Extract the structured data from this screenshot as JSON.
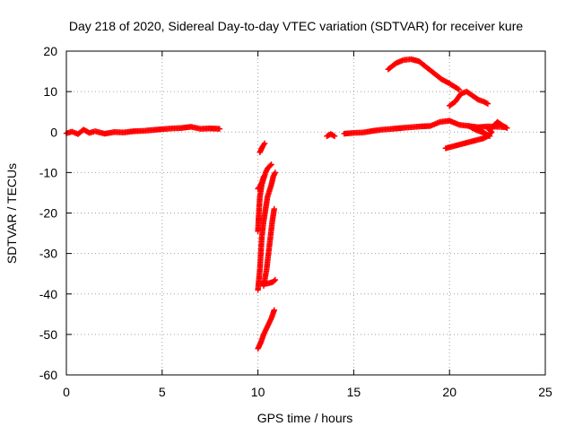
{
  "chart_data": {
    "type": "scatter",
    "title": "Day 218 of 2020, Sidereal Day-to-day VTEC variation (SDTVAR) for receiver kure",
    "xlabel": "GPS time / hours",
    "ylabel": "SDTVAR / TECUs",
    "xlim": [
      0,
      25
    ],
    "ylim": [
      -60,
      20
    ],
    "xticks": [
      0,
      5,
      10,
      15,
      20,
      25
    ],
    "yticks": [
      -60,
      -50,
      -40,
      -30,
      -20,
      -10,
      0,
      10,
      20
    ],
    "x_tick_labels": [
      "0",
      "5",
      "10",
      "15",
      "20",
      "25"
    ],
    "y_tick_labels": [
      "-60",
      "-50",
      "-40",
      "-30",
      "-20",
      "-10",
      "0",
      "10",
      "20"
    ],
    "grid": true,
    "legend": "none",
    "marker": "plus",
    "color": "#ff0000",
    "series": [
      {
        "arcs": [
          [
            [
              0.0,
              -0.3
            ],
            [
              0.3,
              0.1
            ],
            [
              0.6,
              -0.5
            ],
            [
              0.9,
              0.6
            ],
            [
              1.2,
              -0.2
            ],
            [
              1.5,
              0.2
            ],
            [
              2.0,
              -0.4
            ],
            [
              2.5,
              0.0
            ],
            [
              3.0,
              -0.1
            ],
            [
              3.5,
              0.2
            ],
            [
              4.0,
              0.3
            ],
            [
              4.5,
              0.5
            ],
            [
              5.0,
              0.7
            ],
            [
              5.5,
              0.9
            ],
            [
              6.0,
              1.0
            ],
            [
              6.5,
              1.3
            ],
            [
              7.0,
              0.8
            ],
            [
              7.5,
              0.9
            ],
            [
              8.0,
              0.8
            ]
          ],
          [
            [
              10.1,
              -5.0
            ],
            [
              10.25,
              -3.5
            ],
            [
              10.35,
              -2.8
            ]
          ],
          [
            [
              10.0,
              -24.5
            ],
            [
              10.05,
              -20.0
            ],
            [
              10.1,
              -16.0
            ],
            [
              10.2,
              -13.0
            ],
            [
              10.3,
              -11.5
            ],
            [
              10.4,
              -10.0
            ],
            [
              10.5,
              -9.0
            ],
            [
              10.6,
              -8.5
            ],
            [
              10.7,
              -8.0
            ]
          ],
          [
            [
              10.0,
              -14.0
            ],
            [
              10.1,
              -13.5
            ],
            [
              10.2,
              -12.5
            ],
            [
              10.3,
              -11.0
            ]
          ],
          [
            [
              10.0,
              -39.0
            ],
            [
              10.1,
              -34.0
            ],
            [
              10.15,
              -30.0
            ],
            [
              10.2,
              -26.0
            ],
            [
              10.3,
              -22.0
            ],
            [
              10.4,
              -19.0
            ],
            [
              10.5,
              -16.0
            ],
            [
              10.7,
              -13.0
            ],
            [
              10.8,
              -11.0
            ],
            [
              10.9,
              -10.0
            ]
          ],
          [
            [
              10.2,
              -37.5
            ],
            [
              10.4,
              -37.5
            ],
            [
              10.6,
              -37.3
            ],
            [
              10.8,
              -37.0
            ],
            [
              10.9,
              -36.5
            ]
          ],
          [
            [
              10.3,
              -38.0
            ],
            [
              10.45,
              -34.0
            ],
            [
              10.55,
              -30.0
            ],
            [
              10.65,
              -26.0
            ],
            [
              10.75,
              -22.0
            ],
            [
              10.85,
              -19.0
            ]
          ],
          [
            [
              10.0,
              -53.5
            ],
            [
              10.15,
              -52.0
            ],
            [
              10.3,
              -50.0
            ],
            [
              10.5,
              -48.0
            ],
            [
              10.7,
              -46.0
            ],
            [
              10.85,
              -44.0
            ]
          ],
          [
            [
              13.6,
              -1.0
            ],
            [
              13.8,
              -0.5
            ],
            [
              14.0,
              -1.0
            ]
          ],
          [
            [
              14.5,
              -0.4
            ],
            [
              15.0,
              -0.2
            ],
            [
              15.5,
              -0.1
            ],
            [
              16.0,
              0.3
            ],
            [
              16.5,
              0.6
            ],
            [
              17.0,
              0.8
            ],
            [
              17.5,
              1.0
            ],
            [
              18.0,
              1.2
            ],
            [
              18.5,
              1.4
            ],
            [
              19.0,
              1.5
            ],
            [
              19.5,
              2.5
            ],
            [
              20.0,
              2.8
            ],
            [
              20.5,
              1.8
            ],
            [
              21.0,
              1.5
            ],
            [
              21.5,
              1.2
            ],
            [
              22.0,
              1.4
            ],
            [
              22.5,
              1.3
            ],
            [
              22.9,
              1.2
            ]
          ],
          [
            [
              16.8,
              15.5
            ],
            [
              17.2,
              17.0
            ],
            [
              17.6,
              17.8
            ],
            [
              18.0,
              18.0
            ],
            [
              18.4,
              17.5
            ],
            [
              18.8,
              16.0
            ],
            [
              19.2,
              14.5
            ],
            [
              19.6,
              13.0
            ],
            [
              20.0,
              12.0
            ],
            [
              20.5,
              10.5
            ]
          ],
          [
            [
              20.0,
              6.5
            ],
            [
              20.3,
              7.5
            ],
            [
              20.6,
              9.5
            ],
            [
              20.9,
              10.0
            ],
            [
              21.2,
              9.0
            ],
            [
              21.5,
              8.0
            ],
            [
              21.8,
              7.5
            ],
            [
              22.0,
              7.0
            ]
          ],
          [
            [
              19.8,
              -4.0
            ],
            [
              20.2,
              -3.5
            ],
            [
              20.6,
              -3.0
            ],
            [
              21.0,
              -2.5
            ],
            [
              21.4,
              -2.0
            ],
            [
              21.8,
              -1.5
            ],
            [
              22.0,
              -1.0
            ],
            [
              22.2,
              0.0
            ],
            [
              22.0,
              1.0
            ]
          ],
          [
            [
              21.0,
              1.5
            ],
            [
              21.4,
              0.5
            ],
            [
              21.8,
              -0.2
            ],
            [
              22.1,
              -1.0
            ]
          ],
          [
            [
              22.2,
              1.0
            ],
            [
              22.5,
              2.5
            ],
            [
              22.8,
              1.5
            ],
            [
              23.0,
              1.0
            ]
          ]
        ]
      }
    ]
  }
}
